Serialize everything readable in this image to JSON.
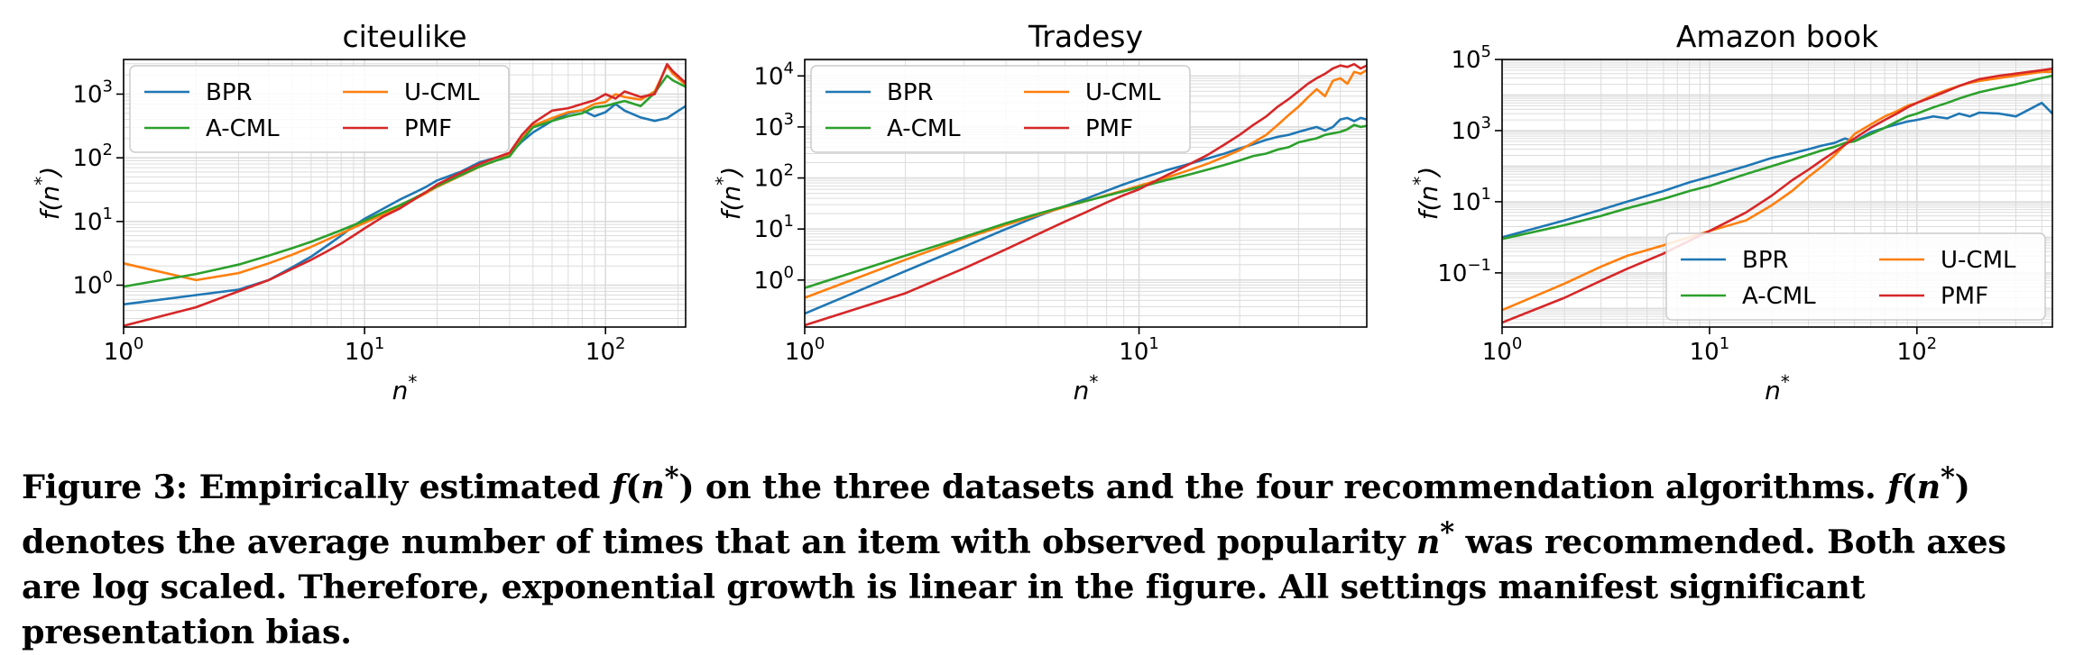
{
  "colors": {
    "BPR": "#1f77b4",
    "U-CML": "#ff7f0e",
    "A-CML": "#2ca02c",
    "PMF": "#d62728",
    "grid": "#dcdcdc",
    "legend_border": "#cccccc"
  },
  "legend_entries": [
    "BPR",
    "U-CML",
    "A-CML",
    "PMF"
  ],
  "chart_data": [
    {
      "type": "line",
      "title": "citeulike",
      "xlabel": "n*",
      "ylabel": "f(n*)",
      "xscale": "log",
      "yscale": "log",
      "xlim": [
        1,
        215
      ],
      "ylim": [
        0.22,
        3500
      ],
      "xticks": [
        {
          "v": 1,
          "e": "0"
        },
        {
          "v": 10,
          "e": "1"
        },
        {
          "v": 100,
          "e": "2"
        }
      ],
      "yticks": [
        {
          "v": 1,
          "e": "0"
        },
        {
          "v": 10,
          "e": "1"
        },
        {
          "v": 100,
          "e": "2"
        },
        {
          "v": 1000,
          "e": "3"
        }
      ],
      "grid": true,
      "legend_position": "top-left",
      "series": [
        {
          "name": "BPR",
          "x": [
            1,
            2,
            3,
            4,
            5,
            6,
            7,
            8,
            9,
            10,
            12,
            14,
            16,
            18,
            20,
            25,
            30,
            35,
            40,
            45,
            50,
            60,
            70,
            80,
            90,
            100,
            110,
            120,
            140,
            160,
            180,
            215
          ],
          "y": [
            0.5,
            0.7,
            0.85,
            1.2,
            1.9,
            2.8,
            4.2,
            6,
            8.5,
            11,
            16,
            22,
            28,
            35,
            44,
            60,
            85,
            100,
            115,
            180,
            250,
            380,
            500,
            560,
            450,
            520,
            700,
            550,
            430,
            380,
            420,
            650
          ]
        },
        {
          "name": "U-CML",
          "x": [
            1,
            2,
            3,
            4,
            5,
            6,
            7,
            8,
            9,
            10,
            12,
            14,
            16,
            18,
            20,
            25,
            30,
            35,
            40,
            45,
            50,
            60,
            70,
            80,
            90,
            100,
            110,
            120,
            140,
            160,
            180,
            190,
            215
          ],
          "y": [
            2.2,
            1.2,
            1.55,
            2.2,
            3,
            4,
            5.2,
            6.5,
            8,
            9.5,
            13,
            17,
            22,
            28,
            35,
            52,
            72,
            90,
            110,
            200,
            320,
            420,
            520,
            560,
            700,
            750,
            1000,
            900,
            820,
            1100,
            2800,
            2100,
            1400
          ]
        },
        {
          "name": "A-CML",
          "x": [
            1,
            2,
            3,
            4,
            5,
            6,
            7,
            8,
            9,
            10,
            12,
            14,
            16,
            18,
            20,
            25,
            30,
            35,
            40,
            45,
            50,
            60,
            70,
            80,
            90,
            100,
            110,
            120,
            140,
            160,
            180,
            190,
            215
          ],
          "y": [
            0.95,
            1.5,
            2.1,
            2.9,
            3.8,
            4.8,
            6,
            7.3,
            8.8,
            10.3,
            14,
            18,
            23,
            29,
            36,
            53,
            73,
            90,
            105,
            190,
            300,
            380,
            450,
            500,
            620,
            650,
            720,
            780,
            650,
            1050,
            1950,
            1650,
            1300
          ]
        },
        {
          "name": "PMF",
          "x": [
            1,
            2,
            3,
            4,
            5,
            6,
            7,
            8,
            9,
            10,
            12,
            14,
            16,
            18,
            20,
            25,
            30,
            35,
            40,
            45,
            50,
            60,
            70,
            80,
            90,
            100,
            110,
            120,
            140,
            160,
            180,
            190,
            215
          ],
          "y": [
            0.23,
            0.45,
            0.8,
            1.2,
            1.8,
            2.5,
            3.4,
            4.5,
            6,
            7.8,
            12,
            16,
            22,
            29,
            38,
            58,
            80,
            100,
            120,
            230,
            350,
            550,
            600,
            700,
            800,
            1000,
            850,
            1100,
            900,
            1000,
            2950,
            2300,
            1500
          ]
        }
      ]
    },
    {
      "type": "line",
      "title": "Tradesy",
      "xlabel": "n*",
      "ylabel": "f(n*)",
      "xscale": "log",
      "yscale": "log",
      "xlim": [
        1,
        48
      ],
      "ylim": [
        0.12,
        21000
      ],
      "xticks": [
        {
          "v": 1,
          "e": "0"
        },
        {
          "v": 10,
          "e": "1"
        }
      ],
      "yticks": [
        {
          "v": 1,
          "e": "0"
        },
        {
          "v": 10,
          "e": "1"
        },
        {
          "v": 100,
          "e": "2"
        },
        {
          "v": 1000,
          "e": "3"
        },
        {
          "v": 10000,
          "e": "4"
        }
      ],
      "grid": true,
      "legend_position": "top-left",
      "series": [
        {
          "name": "BPR",
          "x": [
            1,
            2,
            3,
            4,
            5,
            6,
            7,
            8,
            9,
            10,
            12,
            14,
            16,
            18,
            20,
            22,
            24,
            26,
            28,
            30,
            32,
            34,
            36,
            38,
            40,
            42,
            44,
            46,
            48
          ],
          "y": [
            0.22,
            1.5,
            4.5,
            10,
            18,
            28,
            40,
            56,
            75,
            95,
            140,
            185,
            240,
            300,
            380,
            460,
            560,
            640,
            700,
            800,
            900,
            1000,
            850,
            1000,
            1400,
            1500,
            1300,
            1500,
            1400
          ]
        },
        {
          "name": "U-CML",
          "x": [
            1,
            2,
            3,
            4,
            5,
            6,
            7,
            8,
            9,
            10,
            12,
            14,
            16,
            18,
            20,
            22,
            24,
            26,
            28,
            30,
            32,
            34,
            36,
            38,
            40,
            42,
            44,
            46,
            48
          ],
          "y": [
            0.45,
            2.5,
            6.5,
            12,
            19,
            27,
            36,
            46,
            57,
            70,
            100,
            140,
            190,
            260,
            350,
            500,
            700,
            1100,
            1700,
            2500,
            3800,
            5500,
            4000,
            8000,
            9000,
            7000,
            12000,
            11000,
            13000
          ]
        },
        {
          "name": "A-CML",
          "x": [
            1,
            2,
            3,
            4,
            5,
            6,
            7,
            8,
            9,
            10,
            12,
            14,
            16,
            18,
            20,
            22,
            24,
            26,
            28,
            30,
            32,
            34,
            36,
            38,
            40,
            42,
            44,
            46,
            48
          ],
          "y": [
            0.7,
            3,
            7,
            13,
            20,
            28,
            36,
            45,
            55,
            66,
            90,
            115,
            145,
            180,
            220,
            270,
            300,
            360,
            400,
            500,
            550,
            600,
            700,
            750,
            800,
            900,
            1100,
            1000,
            1050
          ]
        },
        {
          "name": "PMF",
          "x": [
            1,
            2,
            3,
            4,
            5,
            6,
            7,
            8,
            9,
            10,
            12,
            14,
            16,
            18,
            20,
            22,
            24,
            26,
            28,
            30,
            32,
            34,
            36,
            38,
            40,
            42,
            44,
            46,
            48
          ],
          "y": [
            0.13,
            0.55,
            1.7,
            4,
            8,
            14,
            22,
            33,
            46,
            60,
            110,
            180,
            280,
            450,
            700,
            1100,
            1600,
            2500,
            3500,
            5000,
            7000,
            9000,
            11000,
            14000,
            16000,
            15000,
            17000,
            14000,
            16000
          ]
        }
      ]
    },
    {
      "type": "line",
      "title": "Amazon book",
      "xlabel": "n*",
      "ylabel": "f(n*)",
      "xscale": "log",
      "yscale": "log",
      "xlim": [
        1,
        450
      ],
      "ylim": [
        0.003,
        100000
      ],
      "xticks": [
        {
          "v": 1,
          "e": "0"
        },
        {
          "v": 10,
          "e": "1"
        },
        {
          "v": 100,
          "e": "2"
        }
      ],
      "yticks": [
        {
          "v": 0.1,
          "e": "−1"
        },
        {
          "v": 10,
          "e": "1"
        },
        {
          "v": 1000,
          "e": "3"
        },
        {
          "v": 100000,
          "e": "5"
        }
      ],
      "grid": true,
      "legend_position": "lower-right",
      "series": [
        {
          "name": "BPR",
          "x": [
            1,
            2,
            3,
            4,
            6,
            8,
            10,
            15,
            20,
            25,
            30,
            35,
            40,
            45,
            50,
            60,
            70,
            80,
            90,
            100,
            120,
            140,
            160,
            180,
            200,
            250,
            300,
            350,
            400,
            450
          ],
          "y": [
            1,
            3,
            6,
            10,
            20,
            35,
            50,
            100,
            170,
            230,
            300,
            380,
            450,
            600,
            500,
            900,
            1200,
            1500,
            1800,
            2000,
            2500,
            2200,
            3000,
            2500,
            3200,
            3000,
            2500,
            4000,
            6000,
            3000
          ]
        },
        {
          "name": "U-CML",
          "x": [
            1,
            2,
            3,
            4,
            6,
            8,
            10,
            15,
            20,
            25,
            30,
            35,
            40,
            45,
            50,
            60,
            70,
            80,
            90,
            100,
            120,
            140,
            160,
            180,
            200,
            250,
            300,
            350,
            400,
            450
          ],
          "y": [
            0.009,
            0.05,
            0.15,
            0.3,
            0.6,
            1,
            1.5,
            3,
            8,
            20,
            50,
            100,
            200,
            400,
            800,
            1500,
            2500,
            3500,
            5000,
            6000,
            10000,
            14000,
            18000,
            22000,
            25000,
            30000,
            35000,
            40000,
            45000,
            45000
          ]
        },
        {
          "name": "A-CML",
          "x": [
            1,
            2,
            3,
            4,
            6,
            8,
            10,
            15,
            20,
            25,
            30,
            35,
            40,
            45,
            50,
            60,
            70,
            80,
            90,
            100,
            120,
            140,
            160,
            180,
            200,
            250,
            300,
            350,
            400,
            450
          ],
          "y": [
            0.9,
            2.2,
            4,
            6.5,
            12,
            20,
            28,
            60,
            100,
            150,
            210,
            280,
            350,
            450,
            500,
            800,
            1200,
            1800,
            2500,
            3000,
            4500,
            6000,
            8000,
            10000,
            12000,
            16000,
            20000,
            25000,
            30000,
            35000
          ]
        },
        {
          "name": "PMF",
          "x": [
            1,
            2,
            3,
            4,
            6,
            8,
            10,
            15,
            20,
            25,
            30,
            35,
            40,
            45,
            50,
            60,
            70,
            80,
            90,
            100,
            120,
            140,
            160,
            180,
            200,
            250,
            300,
            350,
            400,
            450
          ],
          "y": [
            0.004,
            0.02,
            0.06,
            0.13,
            0.35,
            0.8,
            1.5,
            5,
            15,
            40,
            80,
            150,
            250,
            400,
            600,
            1200,
            2000,
            3000,
            4500,
            6000,
            9000,
            13000,
            18000,
            23000,
            28000,
            35000,
            40000,
            45000,
            50000,
            55000
          ]
        }
      ]
    }
  ],
  "caption": {
    "prefix": "Figure 3: Empirically estimated ",
    "f1": "f",
    "f1_arg": "(n",
    "f1_sup": "*",
    "f1_close": ")",
    "mid1": " on the three datasets and the four recommendation algorithms. ",
    "f2": "f",
    "f2_arg": "(n",
    "f2_sup": "*",
    "f2_close": ")",
    "mid2": " denotes the average number of times that an item with observed popularity ",
    "n": "n",
    "n_sup": "*",
    "rest": " was recommended. Both axes are log scaled. Therefore, exponential growth is linear in the figure. All settings manifest significant presentation bias."
  }
}
